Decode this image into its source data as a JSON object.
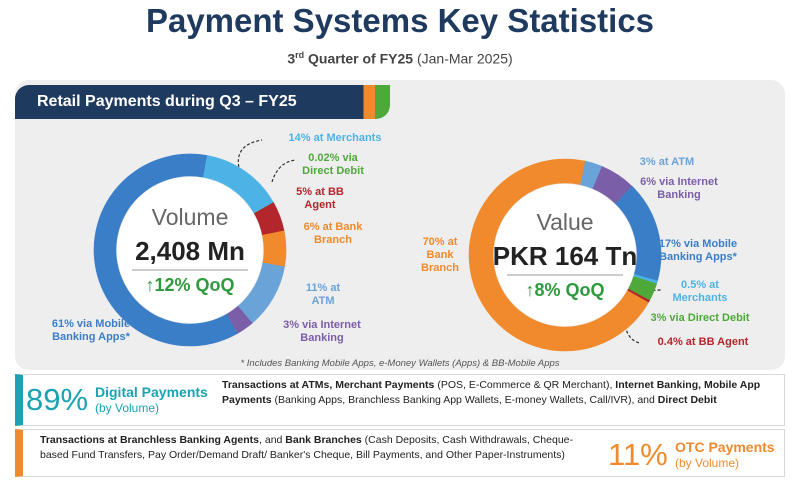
{
  "header": {
    "title": "Payment Systems Key Statistics",
    "quarter_num": "3",
    "quarter_sup": "rd",
    "quarter_rest": " Quarter of FY25",
    "period": "(Jan-Mar 2025)"
  },
  "banner": "Retail Payments during Q3 – FY25",
  "chart_data": [
    {
      "type": "donut",
      "title": "Volume",
      "total_label": "2,408 Mn",
      "change_label": "↑12% QoQ",
      "values": [
        14,
        0.02,
        5,
        6,
        11,
        3,
        61
      ],
      "value_labels": [
        "14% at Merchants",
        "0.02% via Direct Debit",
        "5% at BB Agent",
        "6% at Bank Branch",
        "11% at ATM",
        "3% via Internet Banking",
        "61% via Mobile Banking Apps*"
      ],
      "colors": [
        "#4db3e6",
        "#4fa83a",
        "#b3262b",
        "#f08a2c",
        "#6aa3d8",
        "#7b5ea8",
        "#3b7ec8"
      ]
    },
    {
      "type": "donut",
      "title": "Value",
      "total_label": "PKR 164 Tn",
      "change_label": "↑8% QoQ",
      "values": [
        3,
        6,
        17,
        0.5,
        3,
        0.4,
        70
      ],
      "value_labels": [
        "3% at ATM",
        "6% via Internet Banking",
        "17% via Mobile Banking Apps*",
        "0.5% at Merchants",
        "3% via Direct Debit",
        "0.4% at BB Agent",
        "70% at Bank Branch"
      ],
      "colors": [
        "#6aa3d8",
        "#7b5ea8",
        "#3b7ec8",
        "#4db3e6",
        "#4fa83a",
        "#b3262b",
        "#f08a2c"
      ]
    }
  ],
  "footnote": "* Includes Banking Mobile Apps, e-Money Wallets (Apps) & BB-Mobile Apps",
  "summary": [
    {
      "percent": "89%",
      "title": "Digital Payments",
      "subtitle": "(by Volume)",
      "description": [
        {
          "text": "Transactions at ATMs, Merchant Payments",
          "bold": true
        },
        {
          "text": " (POS, E-Commerce & QR Merchant), ",
          "bold": false
        },
        {
          "text": "Internet Banking, Mobile App Payments",
          "bold": true
        },
        {
          "text": " (Banking Apps, Branchless Banking App Wallets, E-money Wallets, Call/IVR), and ",
          "bold": false
        },
        {
          "text": "Direct Debit",
          "bold": true
        }
      ]
    },
    {
      "percent": "11%",
      "title": "OTC Payments",
      "subtitle": "(by Volume)",
      "description": [
        {
          "text": "Transactions at Branchless Banking Agents",
          "bold": true
        },
        {
          "text": ", and ",
          "bold": false
        },
        {
          "text": "Bank Branches",
          "bold": true
        },
        {
          "text": " (Cash Deposits, Cash Withdrawals, Cheque-based Fund Transfers, Pay Order/Demand Draft/ Banker's Cheque, Bill Payments, and Other Paper-Instruments)",
          "bold": false
        }
      ]
    }
  ]
}
